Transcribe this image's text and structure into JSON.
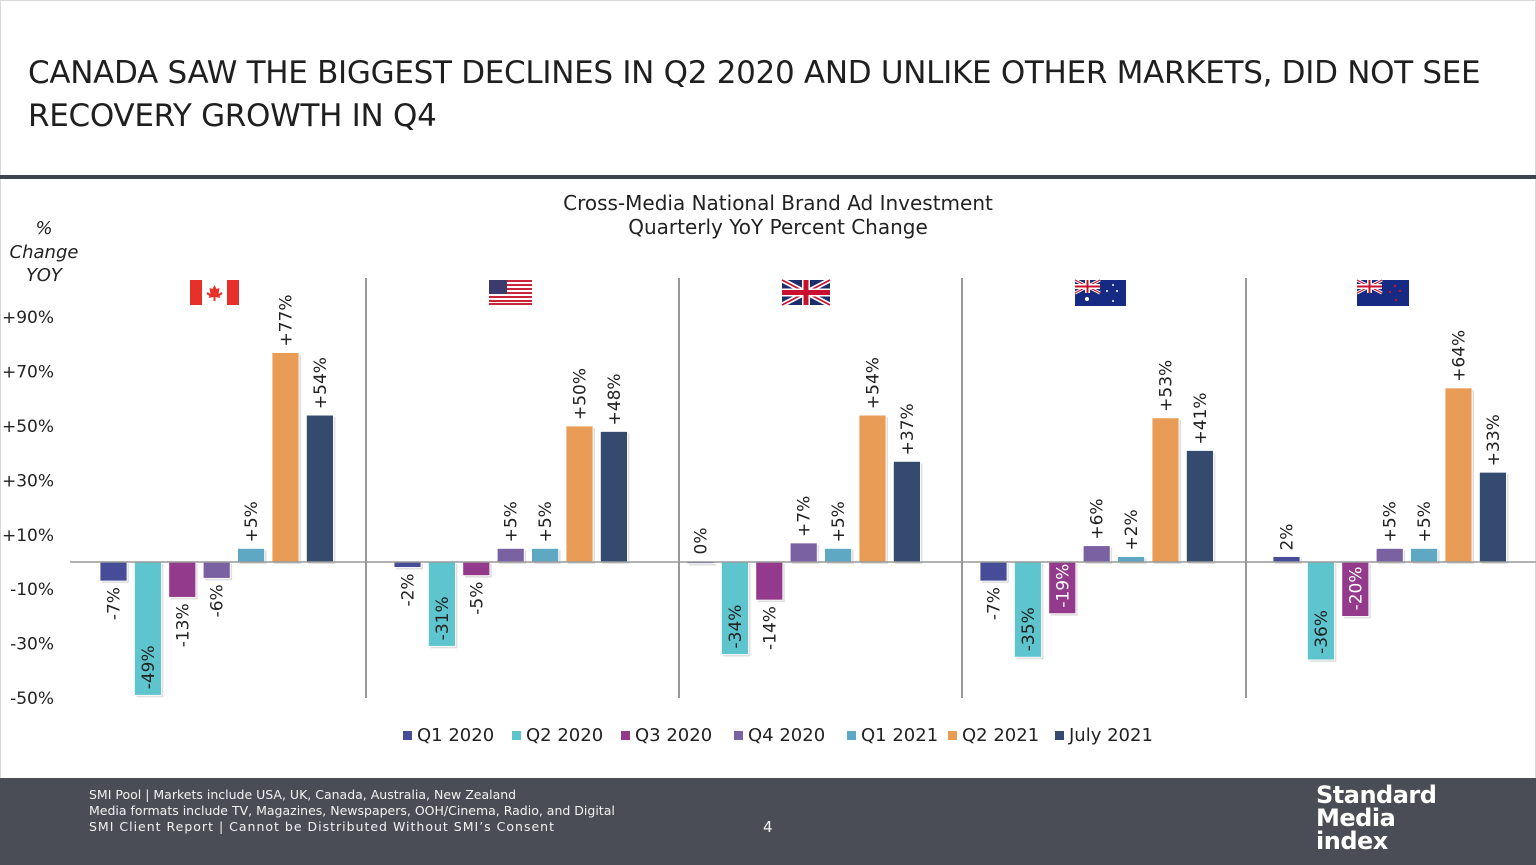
{
  "title": "CANADA SAW THE BIGGEST DECLINES IN Q2 2020 AND UNLIKE OTHER MARKETS, DID NOT SEE RECOVERY GROWTH IN Q4",
  "chart_data": {
    "type": "bar",
    "title": "Cross-Media National Brand Ad Investment",
    "subtitle": "Quarterly YoY Percent Change",
    "ylabel": [
      "%",
      "Change",
      "YOY"
    ],
    "ylim": [
      -50,
      90
    ],
    "yticks": [
      "+90%",
      "+70%",
      "+50%",
      "+30%",
      "+10%",
      "-10%",
      "-30%",
      "-50%"
    ],
    "ytick_values": [
      90,
      70,
      50,
      30,
      10,
      -10,
      -30,
      -50
    ],
    "grid": false,
    "legend_position": "bottom",
    "groups": [
      {
        "market": "Canada",
        "flag": "canada-flag"
      },
      {
        "market": "USA",
        "flag": "usa-flag"
      },
      {
        "market": "UK",
        "flag": "uk-flag"
      },
      {
        "market": "Australia",
        "flag": "australia-flag"
      },
      {
        "market": "New Zealand",
        "flag": "new-zealand-flag"
      }
    ],
    "series": [
      {
        "name": "Q1 2020",
        "color": "#474c98",
        "values": [
          -7,
          -2,
          0,
          -7,
          2
        ],
        "labels": [
          "-7%",
          "-2%",
          "0%",
          "-7%",
          "2%"
        ]
      },
      {
        "name": "Q2 2020",
        "color": "#5ec5cf",
        "values": [
          -49,
          -31,
          -34,
          -35,
          -36
        ],
        "labels": [
          "-49%",
          "-31%",
          "-34%",
          "-35%",
          "-36%"
        ]
      },
      {
        "name": "Q3 2020",
        "color": "#943a8c",
        "values": [
          -13,
          -5,
          -14,
          -19,
          -20
        ],
        "labels": [
          "-13%",
          "-5%",
          "-14%",
          "-19%",
          "-20%"
        ]
      },
      {
        "name": "Q4 2020",
        "color": "#7a61a1",
        "values": [
          -6,
          5,
          7,
          6,
          5
        ],
        "labels": [
          "-6%",
          "+5%",
          "+7%",
          "+6%",
          "+5%"
        ]
      },
      {
        "name": "Q1 2021",
        "color": "#5fa8c3",
        "values": [
          5,
          5,
          5,
          2,
          5
        ],
        "labels": [
          "+5%",
          "+5%",
          "+5%",
          "+2%",
          "+5%"
        ]
      },
      {
        "name": "Q2 2021",
        "color": "#e99c55",
        "values": [
          77,
          50,
          54,
          53,
          64
        ],
        "labels": [
          "+77%",
          "+50%",
          "+54%",
          "+53%",
          "+64%"
        ]
      },
      {
        "name": "July 2021",
        "color": "#344a6f",
        "values": [
          54,
          48,
          37,
          41,
          33
        ],
        "labels": [
          "+54%",
          "+48%",
          "+37%",
          "+41%",
          "+33%"
        ]
      }
    ]
  },
  "footer": {
    "line1": "SMI Pool | Markets include USA, UK, Canada, Australia, New Zealand",
    "line2": "Media formats include TV, Magazines, Newspapers, OOH/Cinema, Radio, and Digital",
    "line3": "SMI Client Report | Cannot be Distributed Without SMI’s Consent",
    "page": "4",
    "logo": [
      "Standard",
      "Media",
      "index"
    ]
  }
}
